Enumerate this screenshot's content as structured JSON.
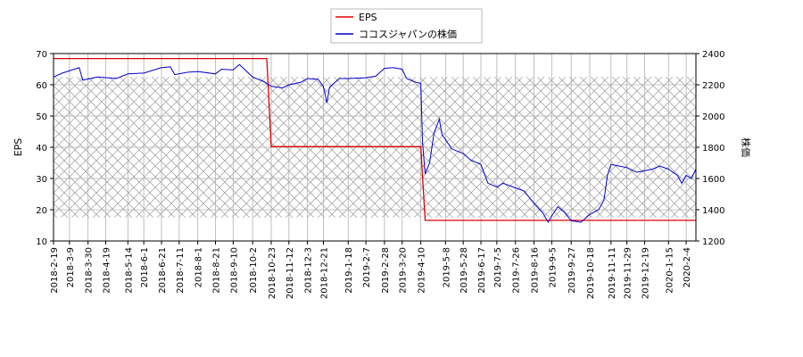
{
  "chart_data": {
    "type": "line",
    "title": "",
    "legend": {
      "placement": "top-center",
      "entries": [
        {
          "label": "EPS",
          "color": "#dd0000"
        },
        {
          "label": "ココスジャパンの株価",
          "color": "#0000cc"
        }
      ]
    },
    "grid": true,
    "hatch_band": {
      "y_left_range": [
        17.5,
        62.5
      ]
    },
    "xlabel": "",
    "x_ticks": [
      "2018-2-19",
      "2018-3-9",
      "2018-3-30",
      "2018-4-19",
      "2018-5-14",
      "2018-6-1",
      "2018-6-21",
      "2018-7-11",
      "2018-8-1",
      "2018-8-21",
      "2018-9-10",
      "2018-10-2",
      "2018-10-23",
      "2018-11-12",
      "2018-12-3",
      "2018-12-21",
      "2019-1-18",
      "2019-2-7",
      "2019-2-28",
      "2019-3-20",
      "2019-4-10",
      "2019-5-8",
      "2019-5-28",
      "2019-6-17",
      "2019-7-5",
      "2019-7-26",
      "2019-8-16",
      "2019-9-5",
      "2019-9-27",
      "2019-10-18",
      "2019-11-11",
      "2019-11-29",
      "2019-12-19",
      "2020-1-15",
      "2020-2-4"
    ],
    "y_left": {
      "label": "EPS",
      "ylim": [
        10,
        70
      ],
      "ticks": [
        10,
        20,
        30,
        40,
        50,
        60,
        70
      ]
    },
    "y_right": {
      "label": "株価",
      "ylim": [
        1200,
        2400
      ],
      "ticks": [
        1200,
        1400,
        1600,
        1800,
        2000,
        2200,
        2400
      ]
    },
    "series": [
      {
        "name": "EPS",
        "axis": "left",
        "color": "#dd0000",
        "step_points": [
          {
            "x": "2018-2-19",
            "y": 68.4
          },
          {
            "x": "2018-10-18",
            "y": 68.4
          },
          {
            "x": "2018-10-23",
            "y": 40.2
          },
          {
            "x": "2019-4-10",
            "y": 40.2
          },
          {
            "x": "2019-4-15",
            "y": 16.6
          },
          {
            "x": "2020-2-15",
            "y": 16.6
          }
        ]
      },
      {
        "name": "ココスジャパンの株価",
        "axis": "right",
        "color": "#0000cc",
        "points": [
          {
            "x": "2018-2-19",
            "y": 2250
          },
          {
            "x": "2018-3-1",
            "y": 2275
          },
          {
            "x": "2018-3-20",
            "y": 2310
          },
          {
            "x": "2018-3-24",
            "y": 2230
          },
          {
            "x": "2018-4-10",
            "y": 2250
          },
          {
            "x": "2018-5-1",
            "y": 2240
          },
          {
            "x": "2018-5-14",
            "y": 2270
          },
          {
            "x": "2018-6-1",
            "y": 2275
          },
          {
            "x": "2018-6-21",
            "y": 2310
          },
          {
            "x": "2018-7-1",
            "y": 2315
          },
          {
            "x": "2018-7-6",
            "y": 2265
          },
          {
            "x": "2018-7-20",
            "y": 2280
          },
          {
            "x": "2018-8-1",
            "y": 2285
          },
          {
            "x": "2018-8-21",
            "y": 2270
          },
          {
            "x": "2018-8-28",
            "y": 2300
          },
          {
            "x": "2018-9-10",
            "y": 2295
          },
          {
            "x": "2018-9-17",
            "y": 2330
          },
          {
            "x": "2018-10-2",
            "y": 2250
          },
          {
            "x": "2018-10-15",
            "y": 2220
          },
          {
            "x": "2018-10-23",
            "y": 2190
          },
          {
            "x": "2018-11-5",
            "y": 2180
          },
          {
            "x": "2018-11-12",
            "y": 2200
          },
          {
            "x": "2018-11-25",
            "y": 2215
          },
          {
            "x": "2018-12-3",
            "y": 2240
          },
          {
            "x": "2018-12-15",
            "y": 2235
          },
          {
            "x": "2018-12-21",
            "y": 2190
          },
          {
            "x": "2018-12-25",
            "y": 2085
          },
          {
            "x": "2018-12-28",
            "y": 2185
          },
          {
            "x": "2019-1-8",
            "y": 2240
          },
          {
            "x": "2019-1-18",
            "y": 2240
          },
          {
            "x": "2019-2-7",
            "y": 2245
          },
          {
            "x": "2019-2-18",
            "y": 2255
          },
          {
            "x": "2019-2-28",
            "y": 2305
          },
          {
            "x": "2019-3-10",
            "y": 2310
          },
          {
            "x": "2019-3-20",
            "y": 2300
          },
          {
            "x": "2019-3-25",
            "y": 2240
          },
          {
            "x": "2019-4-5",
            "y": 2215
          },
          {
            "x": "2019-4-10",
            "y": 2210
          },
          {
            "x": "2019-4-12",
            "y": 1830
          },
          {
            "x": "2019-4-15",
            "y": 1630
          },
          {
            "x": "2019-4-20",
            "y": 1700
          },
          {
            "x": "2019-4-25",
            "y": 1890
          },
          {
            "x": "2019-5-1",
            "y": 1980
          },
          {
            "x": "2019-5-4",
            "y": 1880
          },
          {
            "x": "2019-5-8",
            "y": 1850
          },
          {
            "x": "2019-5-15",
            "y": 1790
          },
          {
            "x": "2019-5-28",
            "y": 1760
          },
          {
            "x": "2019-6-5",
            "y": 1720
          },
          {
            "x": "2019-6-17",
            "y": 1690
          },
          {
            "x": "2019-6-25",
            "y": 1570
          },
          {
            "x": "2019-7-5",
            "y": 1545
          },
          {
            "x": "2019-7-12",
            "y": 1570
          },
          {
            "x": "2019-7-26",
            "y": 1540
          },
          {
            "x": "2019-8-5",
            "y": 1520
          },
          {
            "x": "2019-8-16",
            "y": 1440
          },
          {
            "x": "2019-8-26",
            "y": 1380
          },
          {
            "x": "2019-9-1",
            "y": 1320
          },
          {
            "x": "2019-9-5",
            "y": 1360
          },
          {
            "x": "2019-9-12",
            "y": 1420
          },
          {
            "x": "2019-9-20",
            "y": 1380
          },
          {
            "x": "2019-9-27",
            "y": 1330
          },
          {
            "x": "2019-10-8",
            "y": 1320
          },
          {
            "x": "2019-10-18",
            "y": 1370
          },
          {
            "x": "2019-10-28",
            "y": 1400
          },
          {
            "x": "2019-11-3",
            "y": 1460
          },
          {
            "x": "2019-11-7",
            "y": 1620
          },
          {
            "x": "2019-11-11",
            "y": 1690
          },
          {
            "x": "2019-11-20",
            "y": 1680
          },
          {
            "x": "2019-11-29",
            "y": 1670
          },
          {
            "x": "2019-12-10",
            "y": 1640
          },
          {
            "x": "2019-12-19",
            "y": 1650
          },
          {
            "x": "2019-12-28",
            "y": 1660
          },
          {
            "x": "2020-1-5",
            "y": 1680
          },
          {
            "x": "2020-1-15",
            "y": 1660
          },
          {
            "x": "2020-1-25",
            "y": 1620
          },
          {
            "x": "2020-1-30",
            "y": 1570
          },
          {
            "x": "2020-2-4",
            "y": 1620
          },
          {
            "x": "2020-2-10",
            "y": 1600
          },
          {
            "x": "2020-2-15",
            "y": 1660
          }
        ]
      }
    ]
  }
}
